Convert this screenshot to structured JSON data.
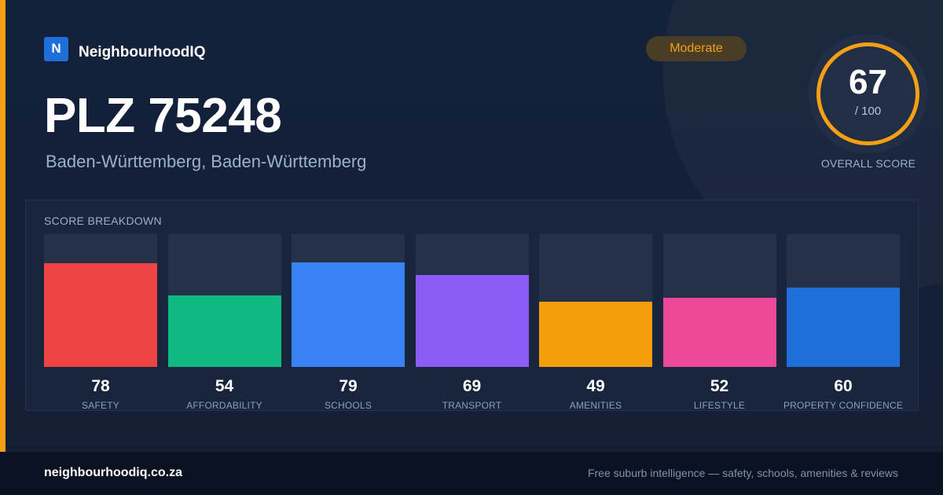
{
  "brand": {
    "logo_letter": "N",
    "name": "NeighbourhoodIQ"
  },
  "badge": {
    "label": "Moderate"
  },
  "location": {
    "title": "PLZ 75248",
    "subtitle": "Baden-Württemberg, Baden-Württemberg"
  },
  "overall": {
    "score": "67",
    "max": "/ 100",
    "label": "OVERALL SCORE",
    "fraction": 0.67
  },
  "breakdown": {
    "title": "SCORE BREAKDOWN",
    "items": [
      {
        "label": "SAFETY",
        "value": 78,
        "color": "#ef4444"
      },
      {
        "label": "AFFORDABILITY",
        "value": 54,
        "color": "#10b981"
      },
      {
        "label": "SCHOOLS",
        "value": 79,
        "color": "#3b82f6"
      },
      {
        "label": "TRANSPORT",
        "value": 69,
        "color": "#8b5cf6"
      },
      {
        "label": "AMENITIES",
        "value": 49,
        "color": "#f59e0b"
      },
      {
        "label": "LIFESTYLE",
        "value": 52,
        "color": "#ec4899"
      },
      {
        "label": "PROPERTY CONFIDENCE",
        "value": 60,
        "color": "#1e6fd9"
      }
    ]
  },
  "colors": {
    "accent": "#f5a014",
    "brand": "#1e6fd9"
  },
  "footer": {
    "domain": "neighbourhoodiq.co.za",
    "tagline": "Free suburb intelligence — safety, schools, amenities & reviews"
  }
}
